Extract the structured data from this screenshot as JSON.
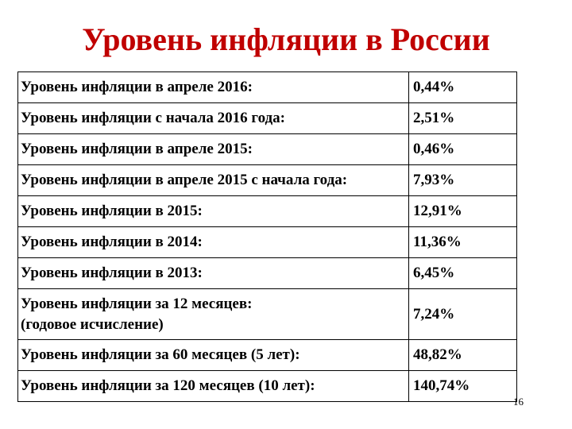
{
  "title": "Уровень инфляции в России",
  "rows": [
    {
      "label": "Уровень инфляции в апреле 2016:",
      "value": "0,44%"
    },
    {
      "label": "Уровень инфляции с начала 2016 года:",
      "value": "2,51%"
    },
    {
      "label": "Уровень инфляции в апреле 2015:",
      "value": "0,46%"
    },
    {
      "label": "Уровень инфляции в апреле 2015 с начала года:",
      "value": "7,93%"
    },
    {
      "label": "Уровень инфляции в 2015:",
      "value": "12,91%"
    },
    {
      "label": "Уровень инфляции в 2014:",
      "value": "11,36%"
    },
    {
      "label": "Уровень инфляции в 2013:",
      "value": "6,45%"
    },
    {
      "label": "Уровень инфляции за 12 месяцев:",
      "label2": "(годовое исчисление)",
      "value": "7,24%"
    },
    {
      "label": "Уровень инфляции за 60 месяцев (5 лет):",
      "value": "48,82%"
    },
    {
      "label": "Уровень инфляции за 120 месяцев (10 лет):",
      "value": "140,74%"
    }
  ],
  "page_number": "16"
}
